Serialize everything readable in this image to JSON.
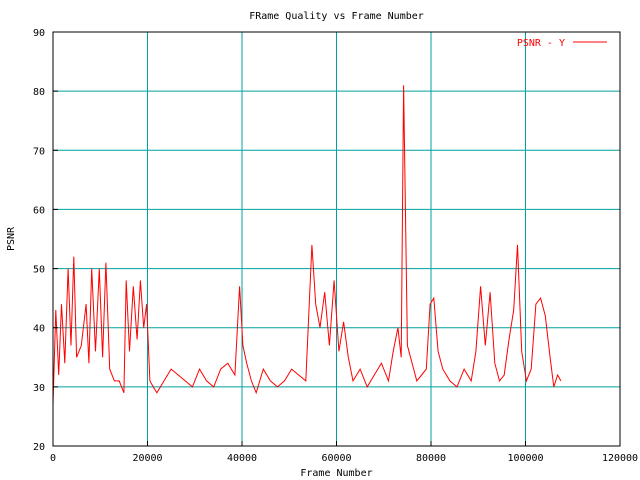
{
  "chart_data": {
    "type": "line",
    "title": "FRame Quality vs Frame Number",
    "xlabel": "Frame Number",
    "ylabel": "PSNR",
    "xlim": [
      0,
      120000
    ],
    "ylim": [
      20,
      90
    ],
    "xticks": [
      0,
      20000,
      40000,
      60000,
      80000,
      100000,
      120000
    ],
    "yticks": [
      20,
      30,
      40,
      50,
      60,
      70,
      80,
      90
    ],
    "xtick_labels": [
      "0",
      "20000",
      "40000",
      "60000",
      "80000",
      "100000",
      "120000"
    ],
    "ytick_labels": [
      "20",
      "30",
      "40",
      "50",
      "60",
      "70",
      "80",
      "90"
    ],
    "grid": true,
    "legend_position": "top-right",
    "colors": {
      "series": "#ff0000",
      "grid": "#00a0a0",
      "frame": "#000000"
    },
    "series": [
      {
        "name": "PSNR - Y",
        "x": [
          0,
          600,
          1200,
          1800,
          2500,
          3200,
          3800,
          4400,
          5000,
          6000,
          7000,
          7600,
          8200,
          9000,
          9800,
          10500,
          11200,
          12000,
          13000,
          14000,
          15000,
          15500,
          16200,
          17000,
          17800,
          18500,
          19200,
          19800,
          20500,
          21200,
          22000,
          23500,
          25000,
          26500,
          28000,
          29500,
          31000,
          32500,
          34000,
          35500,
          37000,
          38500,
          39500,
          40200,
          41000,
          42000,
          43000,
          44500,
          46000,
          47500,
          49000,
          50500,
          52000,
          53500,
          54800,
          55600,
          56500,
          57500,
          58500,
          59500,
          60500,
          61500,
          62500,
          63500,
          65000,
          66500,
          68000,
          69500,
          71000,
          72000,
          73000,
          73700,
          74200,
          75000,
          76000,
          77000,
          78000,
          79000,
          79800,
          80600,
          81500,
          82500,
          84000,
          85500,
          87000,
          88500,
          89500,
          90500,
          91500,
          92500,
          93500,
          94500,
          95500,
          96500,
          97500,
          98300,
          99200,
          100200,
          101200,
          102200,
          103200,
          104200,
          105200,
          106000,
          106800,
          107500
        ],
        "y": [
          27,
          43,
          32,
          44,
          34,
          50,
          37,
          52,
          35,
          37,
          44,
          34,
          50,
          36,
          50,
          35,
          51,
          33,
          31,
          31,
          29,
          48,
          36,
          47,
          38,
          48,
          40,
          44,
          31,
          30,
          29,
          31,
          33,
          32,
          31,
          30,
          33,
          31,
          30,
          33,
          34,
          32,
          47,
          37,
          34,
          31,
          29,
          33,
          31,
          30,
          31,
          33,
          32,
          31,
          54,
          44,
          40,
          46,
          37,
          48,
          36,
          41,
          35,
          31,
          33,
          30,
          32,
          34,
          31,
          36,
          40,
          35,
          81,
          37,
          34,
          31,
          32,
          33,
          44,
          45,
          36,
          33,
          31,
          30,
          33,
          31,
          36,
          47,
          37,
          46,
          34,
          31,
          32,
          38,
          43,
          54,
          36,
          31,
          33,
          44,
          45,
          42,
          35,
          30,
          32,
          31
        ]
      }
    ]
  }
}
